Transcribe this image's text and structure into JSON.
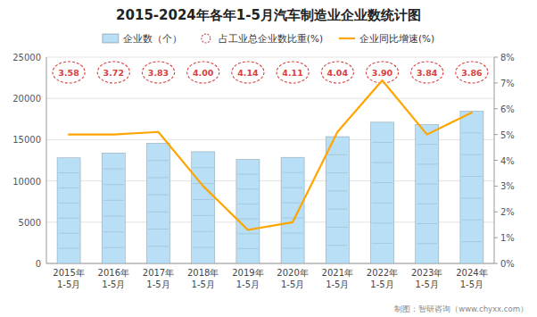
{
  "chart_data": {
    "type": "bar",
    "title": "2015-2024年各年1-5月汽车制造业企业数统计图",
    "annotations": [
      "制图：智研咨询（www.chyxx.com）"
    ],
    "categories": [
      "2015年\n1-5月",
      "2016年\n1-5月",
      "2017年\n1-5月",
      "2018年\n1-5月",
      "2019年\n1-5月",
      "2020年\n1-5月",
      "2021年\n1-5月",
      "2022年\n1-5月",
      "2023年\n1-5月",
      "2024年\n1-5月"
    ],
    "series": [
      {
        "name": "企业数（个）",
        "type": "bar",
        "color": "#b8dff5",
        "values": [
          12806,
          13379,
          14563,
          13548,
          12614,
          12854,
          15367,
          17122,
          16831,
          18459
        ]
      },
      {
        "name": "占工业总企业数比重(%)",
        "type": "label",
        "color": "#d94040",
        "marker": "circle",
        "line_style": "dashed",
        "values": [
          3.58,
          3.72,
          3.83,
          4.0,
          4.14,
          4.11,
          4.04,
          3.9,
          3.84,
          3.86
        ],
        "value_labels": [
          "3.58",
          "3.72",
          "3.83",
          "4.00",
          "4.14",
          "4.11",
          "4.04",
          "3.90",
          "3.84",
          "3.86"
        ]
      },
      {
        "name": "企业同比增速(%)",
        "type": "line",
        "axis": "y2",
        "color": "#FFA500",
        "line_style": "solid",
        "values": [
          0.05,
          0.05,
          0.051,
          0.03,
          0.013,
          0.016,
          0.051,
          0.071,
          0.05,
          0.0585
        ]
      }
    ],
    "ylim": [
      0,
      25000
    ],
    "yticks": [
      0,
      5000,
      10000,
      15000,
      20000,
      25000
    ],
    "y2lim": [
      0,
      0.08
    ],
    "y2ticks": [
      {
        "value": 0.0,
        "label": "0%"
      },
      {
        "value": 0.01,
        "label": "1%"
      },
      {
        "value": 0.02,
        "label": "2%"
      },
      {
        "value": 0.03,
        "label": "3%"
      },
      {
        "value": 0.04,
        "label": "4%"
      },
      {
        "value": 0.05,
        "label": "5%"
      },
      {
        "value": 0.06,
        "label": "6%"
      },
      {
        "value": 0.07,
        "label": "7%"
      },
      {
        "value": 0.08,
        "label": "8%"
      }
    ],
    "grid": true,
    "legend": "top"
  }
}
